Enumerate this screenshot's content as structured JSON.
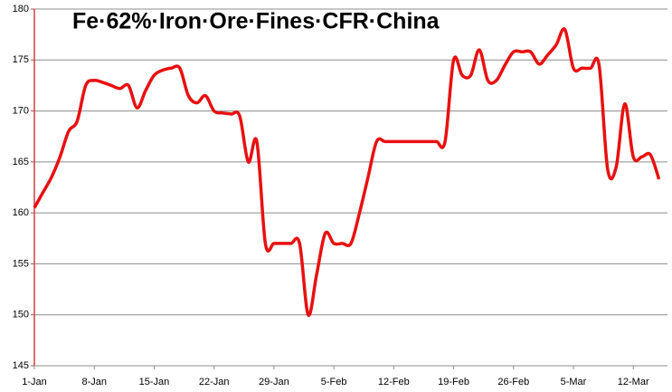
{
  "chart_data": {
    "type": "line",
    "title": "Fe·62%·Iron·Ore·Fines·CFR·China",
    "categories": [
      "1-Jan",
      null,
      null,
      null,
      null,
      null,
      null,
      "8-Jan",
      null,
      null,
      null,
      null,
      null,
      null,
      "15-Jan",
      null,
      null,
      null,
      null,
      null,
      null,
      "22-Jan",
      null,
      null,
      null,
      null,
      null,
      null,
      "29-Jan",
      null,
      null,
      null,
      null,
      null,
      null,
      "5-Feb",
      null,
      null,
      null,
      null,
      null,
      null,
      "12-Feb",
      null,
      null,
      null,
      null,
      null,
      null,
      "19-Feb",
      null,
      null,
      null,
      null,
      null,
      null,
      "26-Feb",
      null,
      null,
      null,
      null,
      null,
      null,
      "5-Mar",
      null,
      null,
      null,
      null,
      null,
      null,
      "12-Mar",
      null,
      null,
      null
    ],
    "series": [
      {
        "name": "Fe 62%",
        "color": "#e81010",
        "values": [
          160.5,
          162,
          163.5,
          165.5,
          168,
          169,
          172.5,
          173,
          172.8,
          172.5,
          172.2,
          172.5,
          170.3,
          172,
          173.5,
          174,
          174.2,
          174.2,
          171.5,
          170.8,
          171.5,
          170,
          169.8,
          169.7,
          169.5,
          165,
          167,
          157,
          157,
          157,
          157,
          157,
          150,
          154,
          158,
          157,
          157,
          157,
          160,
          163.5,
          167,
          167,
          167,
          167,
          167,
          167,
          167,
          167,
          167,
          175,
          173.5,
          173.5,
          176,
          173,
          173,
          174.5,
          175.8,
          175.8,
          175.8,
          174.6,
          175.5,
          176.5,
          178,
          174.2,
          174.2,
          174.2,
          174.5,
          164.3,
          164.5,
          170.7,
          165.5,
          165.5,
          165.7,
          163.3
        ]
      }
    ],
    "ylim": [
      145,
      180
    ],
    "yticks": [
      145,
      150,
      155,
      160,
      165,
      170,
      175,
      180
    ],
    "grid": true
  }
}
